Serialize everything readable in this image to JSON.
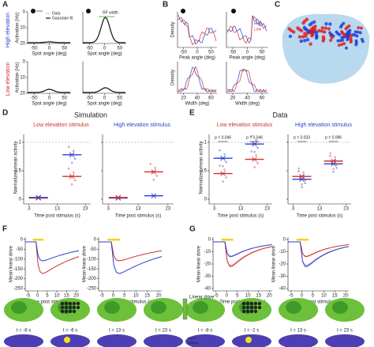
{
  "labels": [
    "A",
    "B",
    "C",
    "D",
    "E",
    "F",
    "G"
  ],
  "a": {
    "row_labels": [
      "High elevation",
      "Low elevation"
    ],
    "ylabel": "Activation (Hz)",
    "xlabel": "Spot angle (deg)",
    "legend": [
      "Data",
      "Gaussian fit"
    ],
    "annotation": "RF width",
    "yticks": [
      "20",
      "10",
      "0"
    ],
    "xticks": [
      "-50",
      "0",
      "50"
    ]
  },
  "b": {
    "ylabel": "Density",
    "xlabel_top": "Peak angle (deg)",
    "xlabel_bottom": "Width (deg)",
    "legend": [
      "High",
      "Low"
    ],
    "xticks_top": [
      "-50",
      "0",
      "50"
    ],
    "xticks_bottom": [
      "20",
      "40",
      "60"
    ]
  },
  "d": {
    "title": "Simulation",
    "subtitles": [
      "Low elevation stimulus",
      "High elevation stimulus"
    ],
    "ylabel": "Normalized mean activity",
    "yticks": [
      "1",
      "0.5",
      "0"
    ],
    "xticks": [
      "3",
      "13",
      "23"
    ],
    "xlabel": "Time post stimulus (s)"
  },
  "e": {
    "title": "Data",
    "subtitles": [
      "Low elevation stimulus",
      "High elevation stimulus"
    ],
    "pvalues": [
      "p = 0.046",
      "p = 0.046",
      "p = 0.033",
      "p = 0.086"
    ]
  },
  "f": {
    "ylabel": "Mean linear drive",
    "yticks": [
      "0",
      "-50",
      "-100",
      "-150",
      "-200",
      "-250"
    ],
    "xticks": [
      "-5",
      "0",
      "5",
      "10",
      "15",
      "20"
    ],
    "xlabel": "Time post stimulus (s)"
  },
  "g": {
    "yticks": [
      "0",
      "-10",
      "-20",
      "-30",
      "-40"
    ]
  },
  "maps": {
    "times": [
      "t = -8 s",
      "t = -6 s",
      "t = 13 s",
      "t = 23 s",
      "t = -8 s",
      "t = -2 s",
      "t = 13 s",
      "t = 23 s"
    ],
    "colorbar": "Linear drive",
    "states": [
      "Silent",
      "Spiking"
    ]
  }
}
